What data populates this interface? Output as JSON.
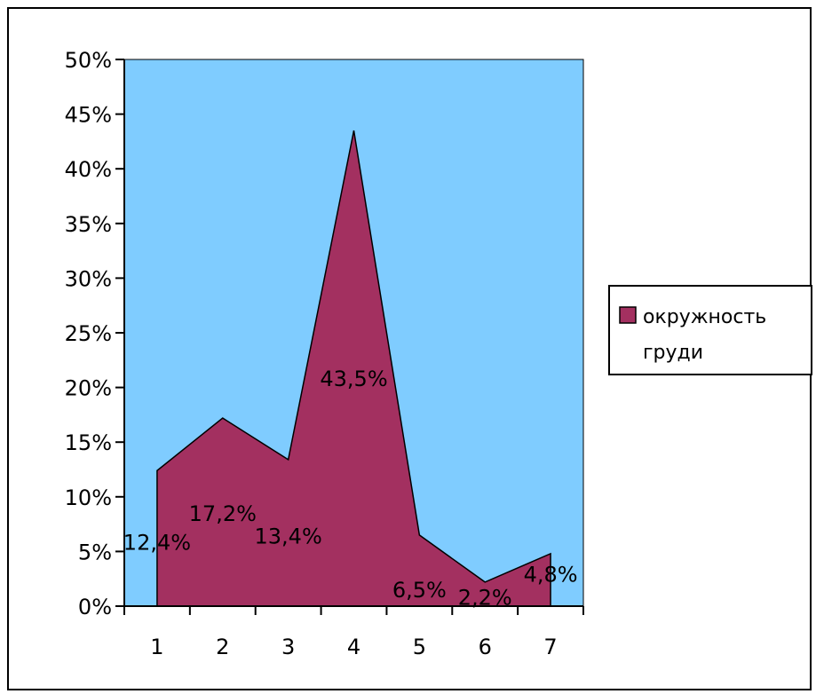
{
  "chart_data": {
    "type": "area",
    "categories": [
      "1",
      "2",
      "3",
      "4",
      "5",
      "6",
      "7"
    ],
    "series": [
      {
        "name": "окружность груди",
        "values": [
          12.4,
          17.2,
          13.4,
          43.5,
          6.5,
          2.2,
          4.8
        ]
      }
    ],
    "data_labels": [
      "12,4%",
      "17,2%",
      "13,4%",
      "43,5%",
      "6,5%",
      "2,2%",
      "4,8%"
    ],
    "y_ticks": [
      "0%",
      "5%",
      "10%",
      "15%",
      "20%",
      "25%",
      "30%",
      "35%",
      "40%",
      "45%",
      "50%"
    ],
    "ylim": [
      0,
      50
    ],
    "legend": {
      "placement": "right",
      "lines": [
        "окружность",
        "груди"
      ]
    },
    "colors": {
      "plot_area": "#7FCCFF",
      "series": "#A33060",
      "series_stroke": "#000000"
    }
  }
}
